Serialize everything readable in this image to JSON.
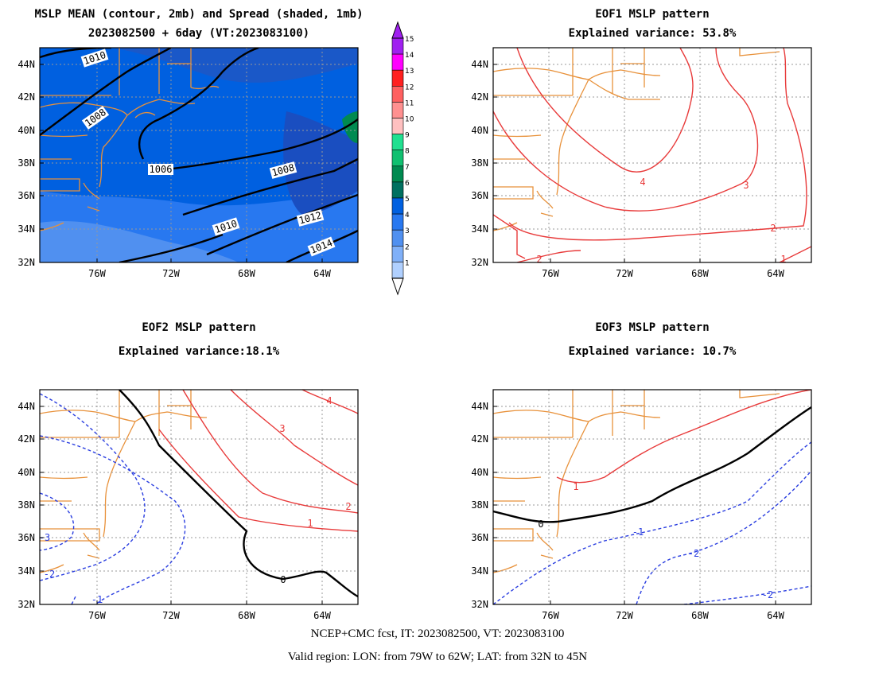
{
  "panels": [
    {
      "id": "mean-spread",
      "title_lines": [
        "MSLP MEAN (contour, 2mb) and Spread (shaded, 1mb)",
        "2023082500 + 6day (VT:2023083100)"
      ],
      "lat_labels": [
        "44N",
        "42N",
        "40N",
        "38N",
        "36N",
        "34N",
        "32N"
      ],
      "lon_labels": [
        "76W",
        "72W",
        "68W",
        "64W"
      ],
      "contour_labels": [
        "1010",
        "1008",
        "1006",
        "1008",
        "1010",
        "1012",
        "1014"
      ]
    },
    {
      "id": "eof1",
      "title_lines": [
        "EOF1 MSLP pattern",
        "Explained variance: 53.8%"
      ],
      "lat_labels": [
        "44N",
        "42N",
        "40N",
        "38N",
        "36N",
        "34N",
        "32N"
      ],
      "lon_labels": [
        "76W",
        "72W",
        "68W",
        "64W"
      ],
      "contour_labels": [
        "4",
        "3",
        "2",
        "2",
        "1"
      ]
    },
    {
      "id": "eof2",
      "title_lines": [
        "EOF2 MSLP pattern",
        "Explained variance:18.1%"
      ],
      "lat_labels": [
        "44N",
        "42N",
        "40N",
        "38N",
        "36N",
        "34N",
        "32N"
      ],
      "lon_labels": [
        "76W",
        "72W",
        "68W",
        "64W"
      ],
      "contour_labels": [
        "4",
        "3",
        "2",
        "1",
        "0",
        "-3",
        "-2",
        "-1"
      ]
    },
    {
      "id": "eof3",
      "title_lines": [
        "EOF3 MSLP pattern",
        "Explained variance: 10.7%"
      ],
      "lat_labels": [
        "44N",
        "42N",
        "40N",
        "38N",
        "36N",
        "34N",
        "32N"
      ],
      "lon_labels": [
        "76W",
        "72W",
        "68W",
        "64W"
      ],
      "contour_labels": [
        "1",
        "0",
        "-1",
        "-2",
        "-2"
      ]
    }
  ],
  "colorbar": {
    "labels": [
      "15",
      "14",
      "13",
      "12",
      "11",
      "10",
      "9",
      "8",
      "7",
      "6",
      "5",
      "4",
      "3",
      "2",
      "1"
    ],
    "colors": [
      "#a020f0",
      "#ff00ff",
      "#ff2020",
      "#ff6060",
      "#ff9090",
      "#ffc0c0",
      "#20e090",
      "#10c070",
      "#008a50",
      "#007060",
      "#0060e0",
      "#2878f0",
      "#5090f0",
      "#80b0f8",
      "#b0d0ff"
    ]
  },
  "map_colors": {
    "coast": "#e8913a",
    "positive": "#e83a3a",
    "negative": "#2a3ee0",
    "zero": "#000000",
    "mean_contour": "#000000",
    "grid": "#999999"
  },
  "footer": {
    "line1": "NCEP+CMC fcst, IT: 2023082500, VT: 2023083100",
    "line2": "Valid region: LON: from 79W to 62W; LAT: from 32N to 45N"
  }
}
